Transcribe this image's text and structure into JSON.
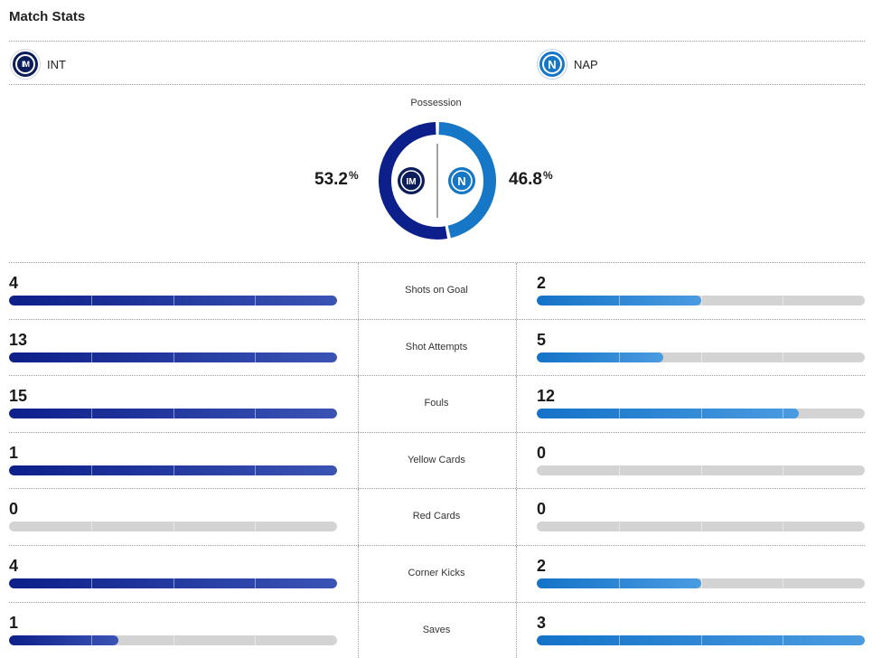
{
  "title": "Match Stats",
  "teams": {
    "home": {
      "abbr": "INT",
      "logo_icon": "inter-crest-icon",
      "color": "#0d1f8a"
    },
    "away": {
      "abbr": "NAP",
      "logo_icon": "napoli-crest-icon",
      "color": "#1577c6"
    }
  },
  "possession": {
    "label": "Possession",
    "home_value": "53.2",
    "away_value": "46.8",
    "unit": "%"
  },
  "stats": [
    {
      "label": "Shots on Goal",
      "home": "4",
      "away": "2",
      "home_fraction": 1.0,
      "away_fraction": 0.5
    },
    {
      "label": "Shot Attempts",
      "home": "13",
      "away": "5",
      "home_fraction": 1.0,
      "away_fraction": 0.385
    },
    {
      "label": "Fouls",
      "home": "15",
      "away": "12",
      "home_fraction": 1.0,
      "away_fraction": 0.8
    },
    {
      "label": "Yellow Cards",
      "home": "1",
      "away": "0",
      "home_fraction": 1.0,
      "away_fraction": 0.0
    },
    {
      "label": "Red Cards",
      "home": "0",
      "away": "0",
      "home_fraction": 0.0,
      "away_fraction": 0.0
    },
    {
      "label": "Corner Kicks",
      "home": "4",
      "away": "2",
      "home_fraction": 1.0,
      "away_fraction": 0.5
    },
    {
      "label": "Saves",
      "home": "1",
      "away": "3",
      "home_fraction": 0.333,
      "away_fraction": 1.0
    }
  ]
}
